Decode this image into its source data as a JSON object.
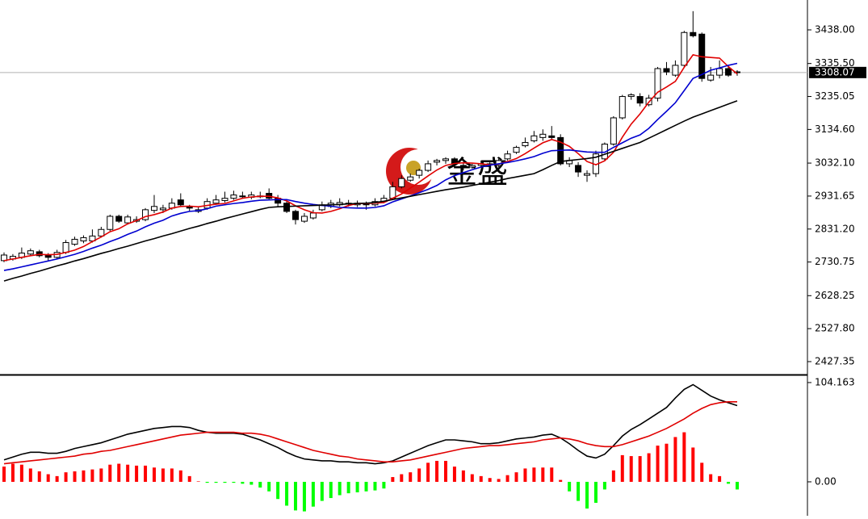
{
  "chart_data": [
    {
      "type": "candlestick",
      "open": [
        2735,
        2740,
        2745,
        2755,
        2762,
        2752,
        2745,
        2760,
        2785,
        2795,
        2795,
        2810,
        2830,
        2870,
        2850,
        2855,
        2860,
        2888,
        2890,
        2895,
        2920,
        2900,
        2885,
        2895,
        2910,
        2918,
        2925,
        2932,
        2928,
        2932,
        2940,
        2925,
        2910,
        2885,
        2855,
        2865,
        2890,
        2900,
        2905,
        2910,
        2905,
        2910,
        2905,
        2915,
        2925,
        2960,
        2980,
        2995,
        3010,
        3035,
        3040,
        3045,
        3025,
        3020,
        3025,
        3030,
        3025,
        3045,
        3065,
        3085,
        3100,
        3110,
        3115,
        3110,
        3030,
        3025,
        2995,
        3000,
        3045,
        3090,
        3170,
        3235,
        3235,
        3210,
        3230,
        3320,
        3300,
        3330,
        3430,
        3425,
        3285,
        3300,
        3320,
        3310
      ],
      "high": [
        2760,
        2755,
        2775,
        2772,
        2768,
        2758,
        2768,
        2798,
        2808,
        2812,
        2830,
        2838,
        2875,
        2875,
        2875,
        2870,
        2895,
        2935,
        2905,
        2925,
        2940,
        2905,
        2900,
        2925,
        2935,
        2945,
        2948,
        2945,
        2945,
        2945,
        2955,
        2935,
        2920,
        2890,
        2880,
        2890,
        2915,
        2920,
        2925,
        2920,
        2918,
        2915,
        2925,
        2935,
        2975,
        2995,
        3000,
        3015,
        3040,
        3045,
        3050,
        3050,
        3035,
        3030,
        3040,
        3035,
        3045,
        3070,
        3085,
        3110,
        3130,
        3135,
        3145,
        3120,
        3050,
        3035,
        3010,
        3070,
        3095,
        3175,
        3240,
        3245,
        3245,
        3240,
        3325,
        3340,
        3345,
        3435,
        3495,
        3430,
        3325,
        3345,
        3330,
        3315
      ],
      "low": [
        2730,
        2735,
        2740,
        2750,
        2745,
        2735,
        2740,
        2755,
        2780,
        2788,
        2790,
        2805,
        2825,
        2850,
        2845,
        2850,
        2855,
        2880,
        2880,
        2890,
        2900,
        2885,
        2880,
        2890,
        2905,
        2912,
        2920,
        2925,
        2922,
        2925,
        2920,
        2900,
        2880,
        2845,
        2850,
        2860,
        2885,
        2895,
        2900,
        2900,
        2898,
        2890,
        2900,
        2910,
        2920,
        2955,
        2975,
        2985,
        3005,
        3025,
        3030,
        3020,
        3010,
        3015,
        3020,
        3020,
        3020,
        3040,
        3060,
        3080,
        3095,
        3100,
        3105,
        3025,
        3020,
        2990,
        2975,
        2990,
        3040,
        3085,
        3165,
        3225,
        3205,
        3205,
        3220,
        3300,
        3295,
        3325,
        3415,
        3280,
        3280,
        3290,
        3295,
        3298
      ],
      "close": [
        2752,
        2748,
        2758,
        2765,
        2750,
        2745,
        2760,
        2790,
        2800,
        2805,
        2810,
        2830,
        2870,
        2855,
        2868,
        2860,
        2890,
        2900,
        2895,
        2910,
        2905,
        2895,
        2890,
        2915,
        2920,
        2925,
        2935,
        2930,
        2935,
        2930,
        2925,
        2910,
        2885,
        2860,
        2870,
        2880,
        2905,
        2910,
        2912,
        2908,
        2910,
        2905,
        2915,
        2925,
        2960,
        2985,
        2990,
        3010,
        3030,
        3040,
        3045,
        3030,
        3020,
        3025,
        3030,
        3028,
        3040,
        3060,
        3080,
        3095,
        3115,
        3120,
        3110,
        3030,
        3040,
        3005,
        3000,
        3060,
        3090,
        3170,
        3235,
        3240,
        3215,
        3230,
        3320,
        3310,
        3330,
        3430,
        3420,
        3290,
        3300,
        3320,
        3300,
        3308.07
      ],
      "up_color": "#ffffff",
      "down_color": "#000000",
      "series": [
        {
          "color": "#e00000",
          "values": [
            2735,
            2740,
            2745,
            2750,
            2754,
            2753,
            2754,
            2760,
            2767,
            2778,
            2793,
            2807,
            2823,
            2832,
            2847,
            2857,
            2869,
            2875,
            2883,
            2895,
            2900,
            2901,
            2899,
            2903,
            2907,
            2909,
            2917,
            2925,
            2929,
            2931,
            2931,
            2926,
            2917,
            2902,
            2890,
            2881,
            2880,
            2885,
            2893,
            2903,
            2909,
            2909,
            2910,
            2912,
            2925,
            2938,
            2956,
            2974,
            2993,
            3011,
            3025,
            3031,
            3033,
            3032,
            3030,
            3027,
            3029,
            3037,
            3046,
            3061,
            3078,
            3094,
            3104,
            3096,
            3083,
            3061,
            3037,
            3027,
            3039,
            3065,
            3111,
            3151,
            3182,
            3218,
            3248,
            3264,
            3281,
            3324,
            3362,
            3356,
            3354,
            3352,
            3326,
            3304
          ]
        },
        {
          "color": "#0000d0",
          "values": [
            2705,
            2710,
            2716,
            2722,
            2728,
            2734,
            2740,
            2747,
            2754,
            2763,
            2773,
            2782,
            2793,
            2803,
            2815,
            2825,
            2838,
            2849,
            2858,
            2871,
            2879,
            2885,
            2887,
            2893,
            2901,
            2905,
            2909,
            2912,
            2916,
            2919,
            2920,
            2921,
            2921,
            2915,
            2910,
            2906,
            2903,
            2901,
            2897,
            2896,
            2895,
            2895,
            2897,
            2902,
            2914,
            2923,
            2932,
            2942,
            2952,
            2964,
            2981,
            2994,
            3003,
            3012,
            3020,
            3026,
            3030,
            3034,
            3039,
            3045,
            3052,
            3062,
            3070,
            3071,
            3072,
            3069,
            3066,
            3065,
            3065,
            3080,
            3094,
            3108,
            3118,
            3138,
            3165,
            3190,
            3216,
            3253,
            3290,
            3302,
            3315,
            3322,
            3330,
            3336
          ]
        },
        {
          "color": "#000000",
          "values": [
            2673,
            2681,
            2688,
            2696,
            2703,
            2711,
            2719,
            2726,
            2734,
            2741,
            2749,
            2757,
            2764,
            2772,
            2779,
            2787,
            2795,
            2802,
            2810,
            2817,
            2825,
            2833,
            2840,
            2848,
            2855,
            2863,
            2870,
            2877,
            2884,
            2891,
            2897,
            2899,
            2900,
            2901,
            2902,
            2903,
            2904,
            2905,
            2906,
            2908,
            2909,
            2910,
            2912,
            2916,
            2921,
            2926,
            2931,
            2936,
            2941,
            2946,
            2951,
            2955,
            2959,
            2964,
            2969,
            2974,
            2979,
            2985,
            2990,
            2995,
            3000,
            3012,
            3025,
            3037,
            3040,
            3043,
            3046,
            3050,
            3059,
            3068,
            3077,
            3086,
            3095,
            3108,
            3121,
            3134,
            3147,
            3160,
            3172,
            3182,
            3192,
            3202,
            3212,
            3222
          ]
        }
      ],
      "ylim": [
        2390.46,
        3528.98
      ],
      "yticks": [
        {
          "value": 3438,
          "label": "3438.00"
        },
        {
          "value": 3335.5,
          "label": "3335.50"
        },
        {
          "value": 3235.05,
          "label": "3235.05"
        },
        {
          "value": 3134.6,
          "label": "3134.60"
        },
        {
          "value": 3032.1,
          "label": "3032.10"
        },
        2931.65,
        {
          "value": 2831.2,
          "label": "2831.20"
        },
        2730.75,
        2628.25,
        {
          "value": 2527.8,
          "label": "2527.80"
        },
        2427.35
      ],
      "last_price": 3308.07,
      "watermark": "金盛"
    },
    {
      "type": "macd",
      "histogram": [
        16,
        19,
        18,
        14,
        11,
        8,
        6,
        10,
        11,
        12,
        13,
        14,
        18,
        19,
        18,
        17,
        17,
        15,
        14,
        14,
        12,
        6,
        0.5,
        -1,
        -1,
        -1,
        -1,
        -2,
        -3,
        -6,
        -10,
        -18,
        -25,
        -30,
        -31,
        -26,
        -20,
        -17,
        -14,
        -12,
        -11,
        -10,
        -9,
        -7,
        5,
        8,
        10,
        14,
        20,
        22,
        22,
        16,
        12,
        8,
        6,
        4,
        3,
        7,
        10,
        14,
        15,
        15,
        15,
        2,
        -10,
        -20,
        -28,
        -22,
        -8,
        12,
        28,
        27,
        27,
        30,
        38,
        40,
        47,
        52,
        36,
        20,
        8,
        6,
        -2,
        -8
      ],
      "up_color": "#ff0000",
      "down_color": "#00ff00",
      "series": [
        {
          "color": "#000000",
          "values": [
            23,
            26,
            29,
            31,
            31,
            30,
            30,
            32,
            35,
            37,
            39,
            41,
            44,
            47,
            50,
            52,
            54,
            56,
            57,
            58,
            58,
            57,
            54,
            52,
            51,
            51,
            51,
            50,
            47,
            44,
            40,
            36,
            31,
            27,
            24,
            23,
            22,
            22,
            21,
            21,
            20,
            20,
            19,
            20,
            22,
            26,
            30,
            34,
            38,
            41,
            44,
            44,
            43,
            42,
            40,
            40,
            41,
            43,
            45,
            46,
            47,
            49,
            50,
            46,
            40,
            33,
            27,
            25,
            29,
            38,
            48,
            55,
            60,
            66,
            72,
            78,
            88,
            97,
            102,
            96,
            90,
            86,
            83,
            80
          ]
        },
        {
          "color": "#e00000",
          "values": [
            19,
            20,
            21,
            22,
            23,
            24,
            25,
            26,
            27,
            29,
            30,
            32,
            33,
            35,
            37,
            39,
            41,
            43,
            45,
            47,
            49,
            50,
            51,
            52,
            52,
            52,
            52,
            51,
            51,
            50,
            48,
            45,
            42,
            39,
            36,
            33,
            31,
            29,
            27,
            26,
            24,
            23,
            22,
            21,
            21,
            22,
            23,
            25,
            27,
            29,
            31,
            33,
            35,
            36,
            37,
            38,
            38,
            39,
            40,
            41,
            42,
            44,
            45,
            46,
            45,
            43,
            40,
            38,
            37,
            37,
            39,
            42,
            45,
            48,
            52,
            56,
            61,
            66,
            72,
            77,
            81,
            83,
            84,
            84
          ]
        }
      ],
      "ylim": [
        -35.6,
        110.9
      ],
      "yticks": [
        104.163,
        {
          "value": 0,
          "label": "0.00"
        }
      ]
    }
  ]
}
